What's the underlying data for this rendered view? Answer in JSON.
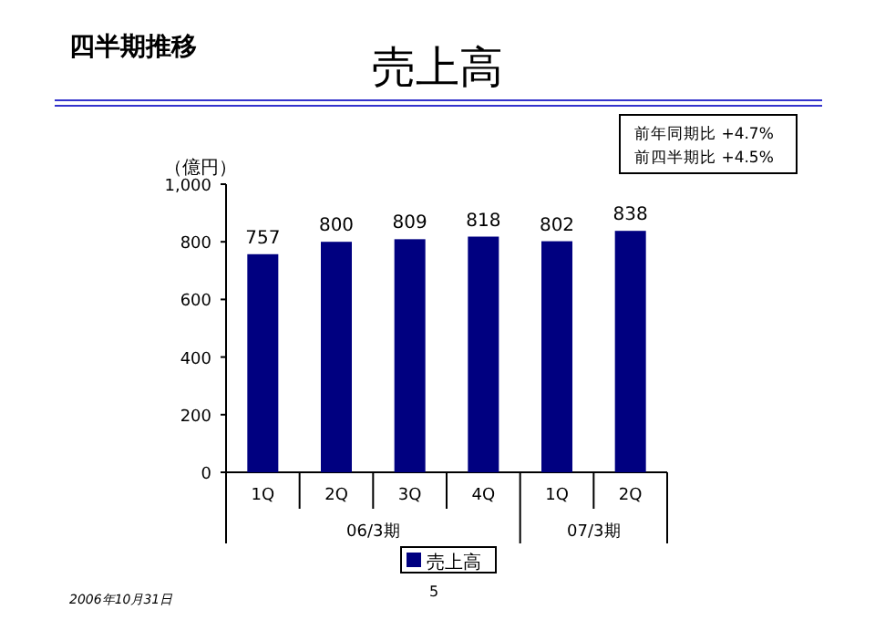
{
  "chart_data": {
    "type": "bar",
    "title": "売上高",
    "subtitle": "四半期推移",
    "ylabel": "（億円）",
    "categories": [
      "1Q",
      "2Q",
      "3Q",
      "4Q",
      "1Q",
      "2Q"
    ],
    "series": [
      {
        "name": "売上高",
        "color": "#000080",
        "values": [
          757,
          800,
          809,
          818,
          802,
          838
        ]
      }
    ],
    "ylim": [
      0,
      1000
    ],
    "yticks": [
      0,
      200,
      400,
      600,
      800,
      {
        "value": 1000,
        "label": "1,000"
      }
    ],
    "data_labels": true,
    "grid": false,
    "legend": "bottom",
    "annotations": [
      "06/3期",
      "07/3期",
      "前年同期比  +4.7%",
      "前四半期比  +4.5%",
      "2006年10月31日",
      "5"
    ]
  }
}
